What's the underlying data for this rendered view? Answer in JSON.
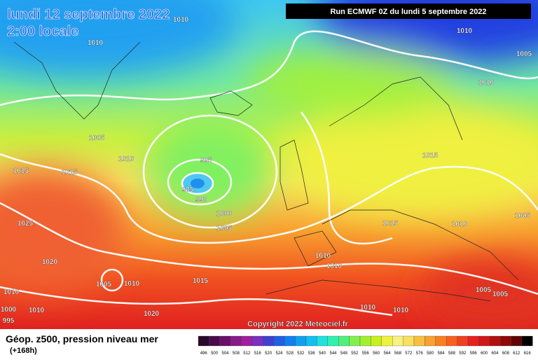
{
  "header": {
    "date": "lundi 12 septembre 2022",
    "time": "2:00 locale",
    "run": "Run ECMWF 0Z du lundi 5 septembre 2022"
  },
  "copyright": "Copyright 2022 Meteociel.fr",
  "footer": {
    "title": "Géop. z500, pression niveau mer",
    "lead": "(+168h)"
  },
  "isobar_labels": [
    "1010",
    "1010",
    "1010",
    "1005",
    "1010",
    "1005",
    "1010",
    "1015",
    "1015",
    "995",
    "985",
    "990",
    "1000",
    "1005",
    "1025",
    "1015",
    "1015",
    "1010",
    "1005",
    "1020",
    "1010",
    "1010",
    "1005",
    "1010",
    "1015",
    "1010",
    "1005",
    "1005",
    "1000",
    "1010",
    "1020",
    "1010",
    "1010",
    "995"
  ],
  "legend": {
    "values": [
      496,
      500,
      504,
      508,
      512,
      516,
      520,
      524,
      528,
      532,
      536,
      540,
      544,
      548,
      552,
      556,
      560,
      564,
      568,
      572,
      576,
      580,
      584,
      588,
      592,
      596,
      600,
      604,
      608,
      612,
      616
    ],
    "colors": [
      "#2a0a2a",
      "#4a0a4a",
      "#6a106a",
      "#8a1a8a",
      "#a020a0",
      "#7a30c0",
      "#4040d0",
      "#2060e0",
      "#1080f0",
      "#10a0f0",
      "#10c0f0",
      "#20e0e0",
      "#30f0b0",
      "#50f080",
      "#80f050",
      "#a0f030",
      "#c8f020",
      "#f0f040",
      "#f8f080",
      "#f8e060",
      "#f8c040",
      "#f8a030",
      "#f88020",
      "#f86020",
      "#f04020",
      "#e82020",
      "#d01818",
      "#b01010",
      "#900808",
      "#600404",
      "#000000"
    ]
  }
}
